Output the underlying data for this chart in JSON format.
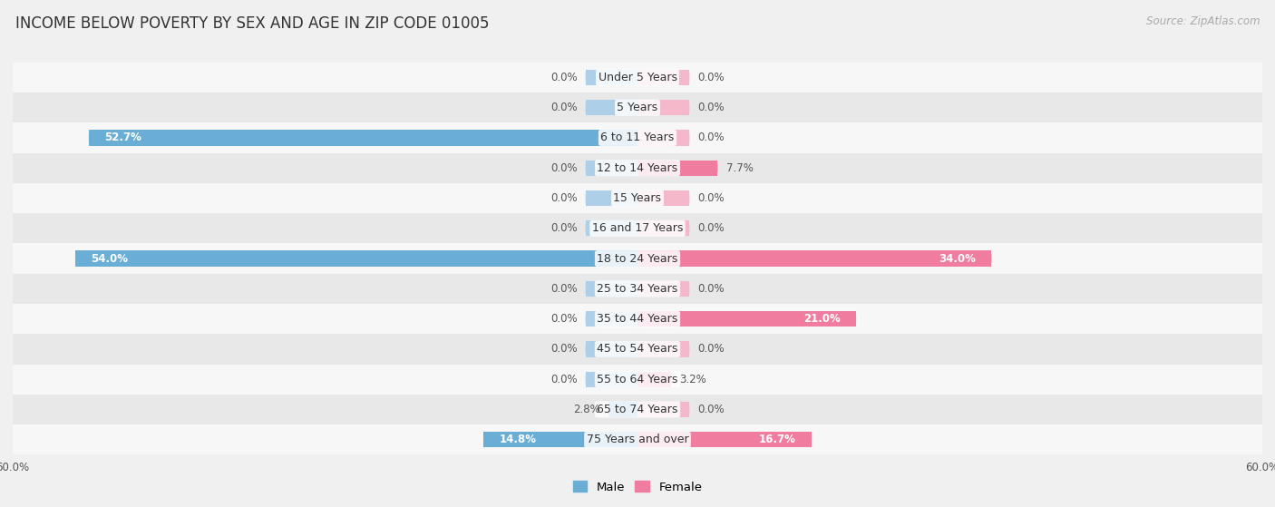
{
  "title": "INCOME BELOW POVERTY BY SEX AND AGE IN ZIP CODE 01005",
  "source": "Source: ZipAtlas.com",
  "categories": [
    "Under 5 Years",
    "5 Years",
    "6 to 11 Years",
    "12 to 14 Years",
    "15 Years",
    "16 and 17 Years",
    "18 to 24 Years",
    "25 to 34 Years",
    "35 to 44 Years",
    "45 to 54 Years",
    "55 to 64 Years",
    "65 to 74 Years",
    "75 Years and over"
  ],
  "male_values": [
    0.0,
    0.0,
    52.7,
    0.0,
    0.0,
    0.0,
    54.0,
    0.0,
    0.0,
    0.0,
    0.0,
    2.8,
    14.8
  ],
  "female_values": [
    0.0,
    0.0,
    0.0,
    7.7,
    0.0,
    0.0,
    34.0,
    0.0,
    21.0,
    0.0,
    3.2,
    0.0,
    16.7
  ],
  "male_color": "#6aaed6",
  "female_color": "#f07ca0",
  "male_color_light": "#aecfe8",
  "female_color_light": "#f5b8cb",
  "male_label": "Male",
  "female_label": "Female",
  "xlim": 60.0,
  "bar_height": 0.52,
  "bg_color": "#f0f0f0",
  "row_color_odd": "#f7f7f7",
  "row_color_even": "#e8e8e8",
  "title_fontsize": 12,
  "label_fontsize": 8.5,
  "axis_fontsize": 8.5,
  "source_fontsize": 8.5,
  "cat_fontsize": 9,
  "stub_size": 5.0,
  "value_label_color": "#555555",
  "value_label_color_inside": "#ffffff"
}
